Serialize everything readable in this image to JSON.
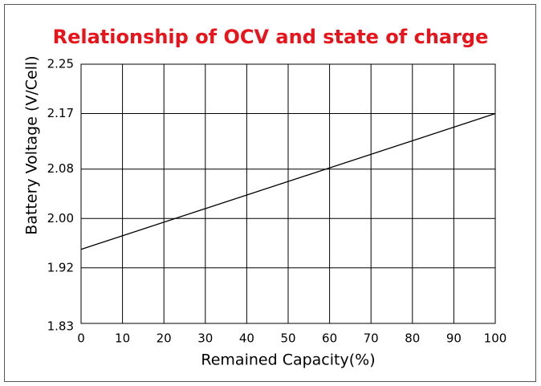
{
  "chart_data": {
    "type": "line",
    "title": "Relationship of OCV and state of charge",
    "xlabel": "Remained Capacity(%)",
    "ylabel": "Battery Voltage (V/Cell)",
    "x": [
      0,
      100
    ],
    "series": [
      {
        "color": "#000000",
        "values": [
          1.95,
          2.17
        ]
      }
    ],
    "xlim": [
      0,
      100
    ],
    "xticks": [
      0,
      10,
      20,
      30,
      40,
      50,
      60,
      70,
      80,
      90,
      100
    ],
    "ylim": [
      1.83,
      2.25
    ],
    "yticks": [
      1.83,
      1.92,
      {
        "value": 2,
        "label": "2.00"
      },
      2.08,
      2.17,
      2.25
    ],
    "grid": true
  }
}
